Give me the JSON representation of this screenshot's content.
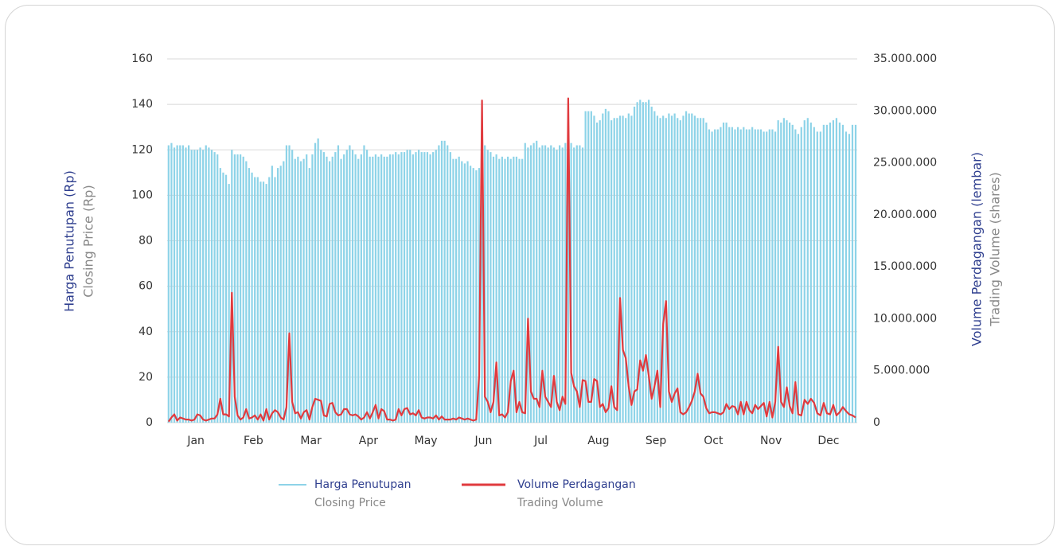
{
  "chart_data": {
    "type": "bar_line",
    "y_axis_title": "Harga Penutupan (Rp)",
    "y_axis_subtitle": "Closing Price (Rp)",
    "y2_axis_title": "Volume Perdagangan (lembar)",
    "y2_axis_subtitle": "Trading Volume (shares)",
    "categories": [
      "Jan",
      "Feb",
      "Mar",
      "Apr",
      "May",
      "Jun",
      "Jul",
      "Aug",
      "Sep",
      "Oct",
      "Nov",
      "Dec"
    ],
    "ylim": [
      0,
      160
    ],
    "yticks": [
      0,
      20,
      40,
      60,
      80,
      100,
      120,
      140,
      160
    ],
    "y2lim": [
      0,
      35000000
    ],
    "y2ticks": [
      0,
      {
        "value": 5000000,
        "label": "5.000.000"
      },
      {
        "value": 10000000,
        "label": "10.000.000"
      },
      {
        "value": 15000000,
        "label": "15.000.000"
      },
      {
        "value": 20000000,
        "label": "20.000.000"
      },
      {
        "value": 25000000,
        "label": "25.000.000"
      },
      {
        "value": 30000000,
        "label": "30.000.000"
      },
      {
        "value": 35000000,
        "label": "35.000.000"
      }
    ],
    "grid": true,
    "series": [
      {
        "name": "Harga Penutupan",
        "subname": "Closing Price",
        "color": "#8dd3e8",
        "kind": "bar",
        "values": [
          [
            122,
            123,
            121,
            122,
            122,
            122,
            121,
            122,
            120,
            120,
            120,
            121,
            120,
            122,
            121,
            120,
            119,
            118,
            112,
            110
          ],
          [
            109,
            105,
            120,
            118,
            118,
            118,
            117,
            115,
            112,
            110,
            108,
            108,
            106,
            106,
            105,
            108,
            113,
            108,
            112,
            113
          ],
          [
            115,
            122,
            122,
            120,
            116,
            117,
            115,
            116,
            118,
            112,
            118,
            123,
            125,
            120,
            119,
            117,
            115,
            117,
            119,
            122
          ],
          [
            116,
            118,
            120,
            122,
            120,
            118,
            116,
            118,
            122,
            120,
            117,
            117,
            118,
            117,
            118,
            117,
            117,
            118,
            118,
            119
          ],
          [
            118,
            119,
            119,
            120,
            120,
            118,
            119,
            120,
            119,
            119,
            119,
            118,
            119,
            120,
            122,
            124,
            124,
            122,
            119,
            116
          ],
          [
            116,
            117,
            115,
            114,
            115,
            113,
            112,
            111,
            112,
            126,
            122,
            120,
            119,
            117,
            118,
            116,
            117,
            116,
            117,
            116
          ],
          [
            117,
            117,
            116,
            116,
            123,
            121,
            122,
            123,
            124,
            121,
            122,
            122,
            121,
            122,
            121,
            120,
            122,
            121,
            123,
            120
          ],
          [
            123,
            121,
            122,
            122,
            121,
            137,
            137,
            137,
            135,
            132,
            133,
            136,
            138,
            137,
            133,
            134,
            134,
            135,
            135,
            134
          ],
          [
            136,
            135,
            139,
            141,
            142,
            141,
            141,
            142,
            139,
            137,
            135,
            134,
            135,
            134,
            136,
            135,
            136,
            134,
            133,
            135
          ],
          [
            137,
            136,
            136,
            135,
            134,
            134,
            134,
            132,
            129,
            128,
            129,
            129,
            130,
            132,
            132,
            130,
            130,
            129,
            130,
            129
          ],
          [
            130,
            129,
            129,
            130,
            129,
            129,
            129,
            128,
            128,
            129,
            129,
            128,
            133,
            132,
            134,
            133,
            132,
            131,
            129,
            127
          ],
          [
            130,
            133,
            134,
            132,
            130,
            128,
            128,
            131,
            131,
            132,
            133,
            134,
            132,
            131,
            128,
            127,
            131,
            131
          ]
        ]
      },
      {
        "name": "Volume Perdagangan",
        "subname": "Trading Volume",
        "color": "#e03a3e",
        "kind": "line",
        "axis": "y2",
        "values": [
          [
            100000,
            500000,
            800000,
            200000,
            500000,
            400000,
            300000,
            300000,
            200000,
            300000,
            800000,
            700000,
            300000,
            200000,
            300000,
            400000,
            400000,
            800000,
            2300000,
            800000
          ],
          [
            800000,
            600000,
            12500000,
            2500000,
            700000,
            300000,
            500000,
            1300000,
            400000,
            500000,
            700000,
            300000,
            800000,
            200000,
            1300000,
            300000,
            900000,
            1200000,
            1000000,
            500000
          ],
          [
            300000,
            1500000,
            8600000,
            2000000,
            900000,
            1000000,
            400000,
            1000000,
            1200000,
            300000,
            1500000,
            2300000,
            2200000,
            2100000,
            700000,
            600000,
            1800000,
            1900000,
            1000000,
            700000
          ],
          [
            800000,
            1300000,
            1300000,
            800000,
            700000,
            800000,
            600000,
            300000,
            500000,
            1000000,
            400000,
            1000000,
            1700000,
            400000,
            1300000,
            1100000,
            300000,
            300000,
            200000,
            300000
          ],
          [
            1300000,
            700000,
            1300000,
            1400000,
            800000,
            900000,
            700000,
            1200000,
            500000,
            400000,
            500000,
            500000,
            400000,
            700000,
            300000,
            600000,
            300000,
            300000,
            300000,
            400000
          ],
          [
            300000,
            500000,
            400000,
            300000,
            400000,
            300000,
            200000,
            300000,
            4500000,
            31000000,
            2500000,
            2000000,
            1000000,
            2000000,
            5800000,
            700000,
            800000,
            500000,
            1000000,
            4000000
          ],
          [
            5000000,
            1000000,
            2000000,
            1000000,
            900000,
            10000000,
            3000000,
            2300000,
            2300000,
            1500000,
            5000000,
            2500000,
            2000000,
            1500000,
            4500000,
            2000000,
            1200000,
            2500000,
            1800000,
            31200000
          ],
          [
            4800000,
            3500000,
            3000000,
            1500000,
            4100000,
            4000000,
            2000000,
            2000000,
            4200000,
            4000000,
            1500000,
            1800000,
            1000000,
            1400000,
            3500000,
            1500000,
            1200000,
            12000000,
            7000000,
            6200000
          ],
          [
            3500000,
            1700000,
            3000000,
            3200000,
            6000000,
            5000000,
            6500000,
            4500000,
            2300000,
            3500000,
            5000000,
            1500000,
            9500000,
            11700000,
            3000000,
            2000000,
            2800000,
            3300000,
            1000000,
            800000
          ],
          [
            1000000,
            1500000,
            2100000,
            3000000,
            4700000,
            2800000,
            2500000,
            1400000,
            900000,
            1000000,
            1000000,
            900000,
            800000,
            1000000,
            1800000,
            1300000,
            1600000,
            1500000,
            800000,
            2000000
          ],
          [
            800000,
            2000000,
            1200000,
            900000,
            1700000,
            1300000,
            1600000,
            1900000,
            600000,
            2000000,
            500000,
            2000000,
            7300000,
            2000000,
            1500000,
            3400000,
            1600000,
            900000,
            3900000,
            800000
          ],
          [
            700000,
            2200000,
            1800000,
            2300000,
            1900000,
            900000,
            700000,
            1900000,
            900000,
            800000,
            1700000,
            700000,
            1000000,
            1500000,
            1100000,
            800000,
            700000,
            500000
          ]
        ]
      }
    ]
  }
}
